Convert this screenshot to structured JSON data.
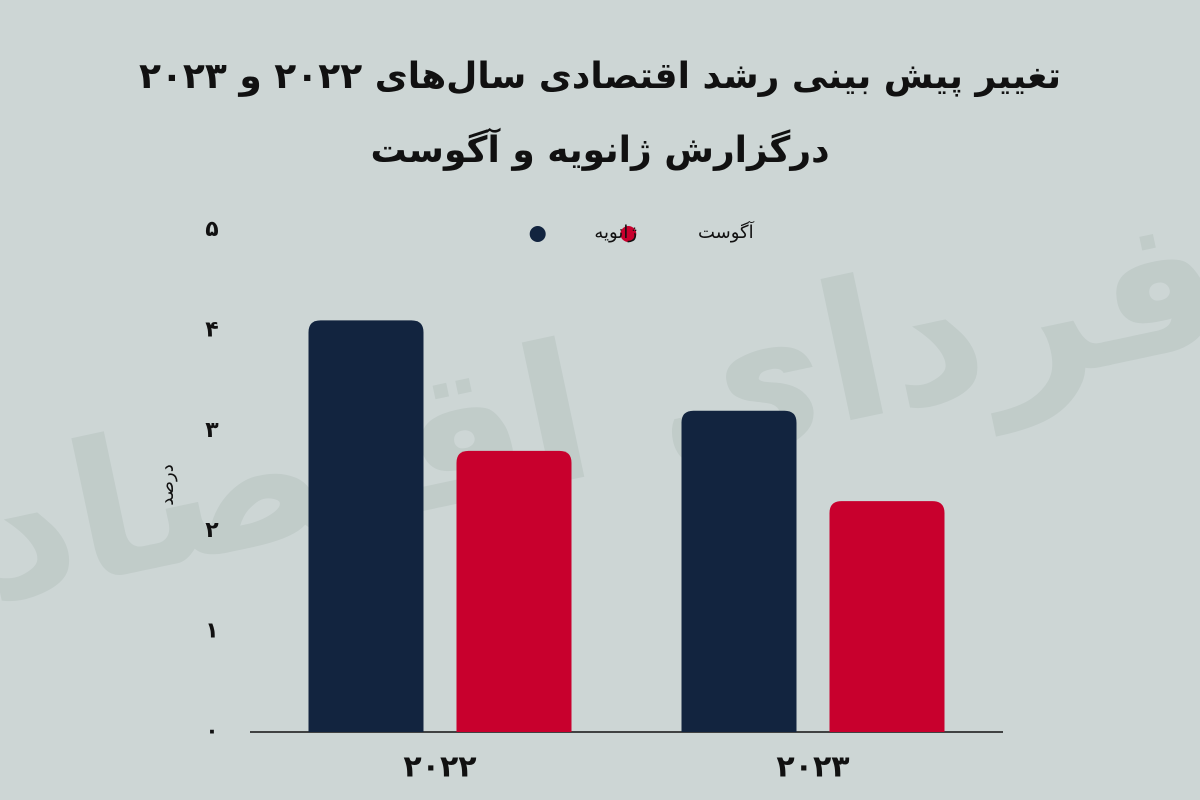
{
  "chart_data": {
    "type": "bar",
    "title": "تغییر پیش بینی رشد اقتصادی سال‌های ۲۰۲۲ و ۲۰۲۳",
    "subtitle": "درگزارش ژانویه و آگوست",
    "y_label": "درصد",
    "watermark": "فردای اقتصاد",
    "categories": [
      "۲۰۲۲",
      "۲۰۲۳"
    ],
    "series": [
      {
        "name": "ژانویه",
        "color": "#12243f",
        "values": [
          4.1,
          3.2
        ]
      },
      {
        "name": "آگوست",
        "color": "#c8002d",
        "values": [
          2.8,
          2.3
        ]
      }
    ],
    "ylim": [
      0,
      5
    ],
    "yticks": [
      {
        "value": 0,
        "label": "۰"
      },
      {
        "value": 1,
        "label": "۱"
      },
      {
        "value": 2,
        "label": "۲"
      },
      {
        "value": 3,
        "label": "۳"
      },
      {
        "value": 4,
        "label": "۴"
      },
      {
        "value": 5,
        "label": "۵"
      }
    ],
    "grid": false
  }
}
